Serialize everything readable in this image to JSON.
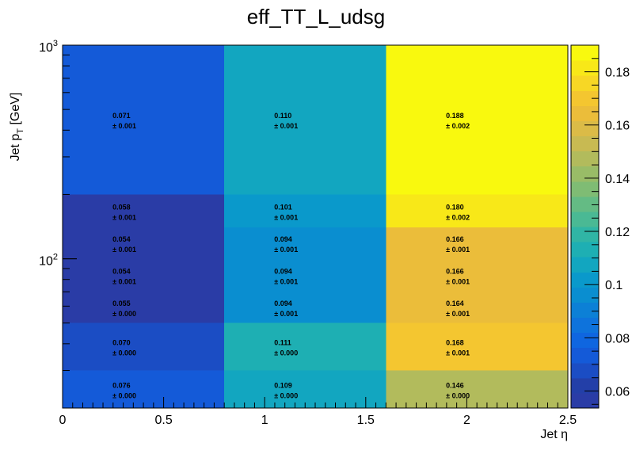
{
  "chart_data": {
    "type": "heatmap",
    "title": "eff_TT_L_udsg",
    "xlabel": "Jet η",
    "ylabel": "Jet p_T [GeV]",
    "xlim": [
      0,
      2.5
    ],
    "ylim": [
      20,
      1000
    ],
    "y_scale": "log",
    "x_edges": [
      0,
      0.8,
      1.6,
      2.5
    ],
    "y_edges": [
      20,
      30,
      50,
      70,
      100,
      140,
      200,
      1000
    ],
    "x_tick_labels": [
      "0",
      "0.5",
      "1",
      "1.5",
      "2",
      "2.5"
    ],
    "x_tick_values": [
      0,
      0.5,
      1,
      1.5,
      2,
      2.5
    ],
    "y_tick_labels": [
      {
        "base": "10",
        "exp": "2",
        "value": 100
      },
      {
        "base": "10",
        "exp": "3",
        "value": 1000
      }
    ],
    "colorbar": {
      "min": 0.0536,
      "max": 0.19,
      "tick_labels": [
        "0.06",
        "0.08",
        "0.1",
        "0.12",
        "0.14",
        "0.16",
        "0.18"
      ],
      "tick_values": [
        0.06,
        0.08,
        0.1,
        0.12,
        0.14,
        0.16,
        0.18
      ],
      "palette": [
        "#2a3ca6",
        "#233fa8",
        "#1b4dc4",
        "#145ad8",
        "#0f66e0",
        "#0e73dc",
        "#0c80d6",
        "#0a8ed0",
        "#0a99cb",
        "#12a6c0",
        "#1eafb3",
        "#30b5a5",
        "#4ab994",
        "#64bb84",
        "#7fbc74",
        "#99bc67",
        "#b2bb5c",
        "#c8ba52",
        "#dbbb47",
        "#ebbd3a",
        "#f4c630",
        "#f7d725",
        "#f8e818",
        "#f9f90e"
      ]
    },
    "cells": [
      {
        "row": 0,
        "col": 0,
        "value": "0.076",
        "error": "± 0.000",
        "v": 0.076
      },
      {
        "row": 0,
        "col": 1,
        "value": "0.109",
        "error": "± 0.000",
        "v": 0.109
      },
      {
        "row": 0,
        "col": 2,
        "value": "0.146",
        "error": "± 0.000",
        "v": 0.146
      },
      {
        "row": 1,
        "col": 0,
        "value": "0.070",
        "error": "± 0.000",
        "v": 0.07
      },
      {
        "row": 1,
        "col": 1,
        "value": "0.111",
        "error": "± 0.000",
        "v": 0.111
      },
      {
        "row": 1,
        "col": 2,
        "value": "0.168",
        "error": "± 0.001",
        "v": 0.168
      },
      {
        "row": 2,
        "col": 0,
        "value": "0.055",
        "error": "± 0.000",
        "v": 0.055
      },
      {
        "row": 2,
        "col": 1,
        "value": "0.094",
        "error": "± 0.001",
        "v": 0.094
      },
      {
        "row": 2,
        "col": 2,
        "value": "0.164",
        "error": "± 0.001",
        "v": 0.164
      },
      {
        "row": 3,
        "col": 0,
        "value": "0.054",
        "error": "± 0.001",
        "v": 0.054
      },
      {
        "row": 3,
        "col": 1,
        "value": "0.094",
        "error": "± 0.001",
        "v": 0.094
      },
      {
        "row": 3,
        "col": 2,
        "value": "0.166",
        "error": "± 0.001",
        "v": 0.166
      },
      {
        "row": 4,
        "col": 0,
        "value": "0.054",
        "error": "± 0.001",
        "v": 0.054
      },
      {
        "row": 4,
        "col": 1,
        "value": "0.094",
        "error": "± 0.001",
        "v": 0.094
      },
      {
        "row": 4,
        "col": 2,
        "value": "0.166",
        "error": "± 0.001",
        "v": 0.166
      },
      {
        "row": 5,
        "col": 0,
        "value": "0.058",
        "error": "± 0.001",
        "v": 0.058
      },
      {
        "row": 5,
        "col": 1,
        "value": "0.101",
        "error": "± 0.001",
        "v": 0.101
      },
      {
        "row": 5,
        "col": 2,
        "value": "0.180",
        "error": "± 0.002",
        "v": 0.18
      },
      {
        "row": 6,
        "col": 0,
        "value": "0.071",
        "error": "± 0.001",
        "v": 0.071
      },
      {
        "row": 6,
        "col": 1,
        "value": "0.110",
        "error": "± 0.001",
        "v": 0.11
      },
      {
        "row": 6,
        "col": 2,
        "value": "0.188",
        "error": "± 0.002",
        "v": 0.188
      }
    ]
  }
}
